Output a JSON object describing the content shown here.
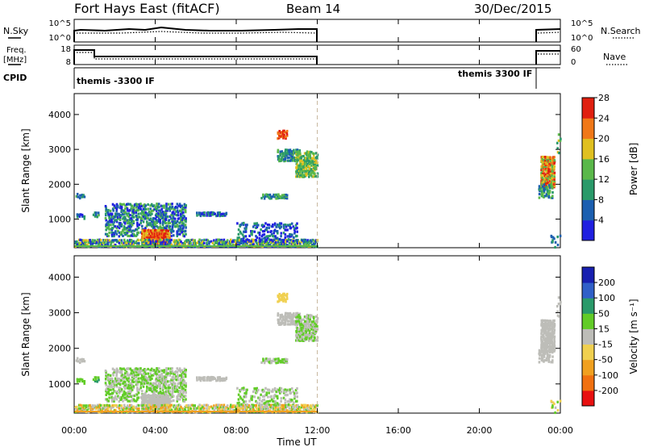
{
  "header": {
    "station": "Fort Hays East (fitACF)",
    "beam": "Beam 14",
    "date": "30/Dec/2015"
  },
  "panels": {
    "nsky_label": "N.Sky",
    "nsearch_label": "N.Search",
    "noise_ticks": [
      "10^5",
      "10^0"
    ],
    "noise_ticks_right": [
      "10^5",
      "10^0"
    ],
    "freq_label_1": "Freq.",
    "freq_label_2": "[MHz]",
    "freq_ticks": [
      "18",
      "8"
    ],
    "nave_label": "Nave",
    "nave_ticks": [
      "60",
      "0"
    ],
    "cpid_label": "CPID",
    "cpid_left": "themis -3300 IF",
    "cpid_right": "themis 3300 IF"
  },
  "colors": {
    "power": [
      "#2020e0",
      "#1c5fb0",
      "#2a9a6a",
      "#5ab84a",
      "#e0c020",
      "#f07818",
      "#e02010"
    ],
    "velocity": [
      "#e81010",
      "#f07010",
      "#f0a020",
      "#f0d050",
      "#bdbdb8",
      "#62cc28",
      "#2a9a6a",
      "#3060c8",
      "#1820b0"
    ]
  },
  "chart_data": [
    {
      "type": "heatmap",
      "ylabel": "Slant Range [km]",
      "xlabel": "Time UT",
      "x_ticks": [
        "00:00",
        "04:00",
        "08:00",
        "12:00",
        "16:00",
        "20:00",
        "00:00"
      ],
      "y_ticks": [
        "1000",
        "2000",
        "3000",
        "4000"
      ],
      "ylim": [
        180,
        4600
      ],
      "xlim_hours": [
        0,
        24
      ],
      "colorbar_label": "Power [dB]",
      "colorbar_ticks": [
        "4",
        "8",
        "12",
        "16",
        "20",
        "24",
        "28"
      ],
      "clim": [
        0,
        30
      ],
      "dashed_time": "12:00"
    },
    {
      "type": "heatmap",
      "ylabel": "Slant Range [km]",
      "xlabel": "Time UT",
      "x_ticks": [
        "00:00",
        "04:00",
        "08:00",
        "12:00",
        "16:00",
        "20:00",
        "00:00"
      ],
      "y_ticks": [
        "1000",
        "2000",
        "3000",
        "4000"
      ],
      "ylim": [
        180,
        4600
      ],
      "xlim_hours": [
        0,
        24
      ],
      "colorbar_label": "Velocity [m s⁻¹]",
      "colorbar_ticks": [
        "200",
        "100",
        "50",
        "15",
        "-15",
        "-50",
        "-100",
        "-200"
      ],
      "clim": [
        -250,
        250
      ],
      "dashed_time": "12:00"
    }
  ]
}
